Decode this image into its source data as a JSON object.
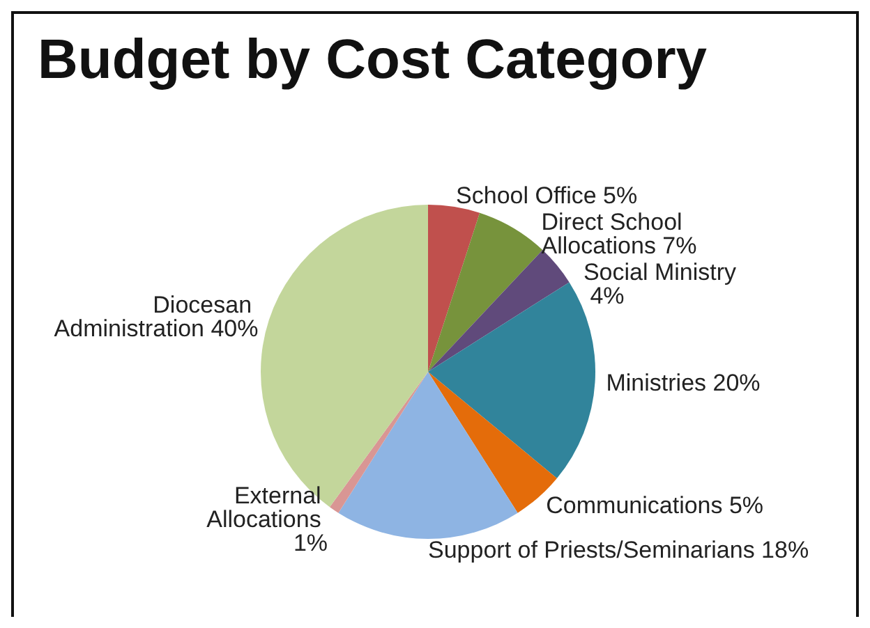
{
  "chart_data": {
    "type": "pie",
    "title": "Budget by Cost Category",
    "categories": [
      "School Office",
      "Direct School Allocations",
      "Social Ministry",
      "Ministries",
      "Communications",
      "Support of Priests/Seminarians",
      "External Allocations",
      "Diocesan Administration"
    ],
    "values": [
      5,
      7,
      4,
      20,
      5,
      18,
      1,
      40
    ],
    "colors": [
      "#c0504d",
      "#77933c",
      "#604a7b",
      "#31849b",
      "#e46c0a",
      "#8eb4e3",
      "#d99694",
      "#c3d69b"
    ],
    "value_labels": [
      "5%",
      "7%",
      "4%",
      "20%",
      "5%",
      "18%",
      "1%",
      "40%"
    ],
    "legend": false
  }
}
